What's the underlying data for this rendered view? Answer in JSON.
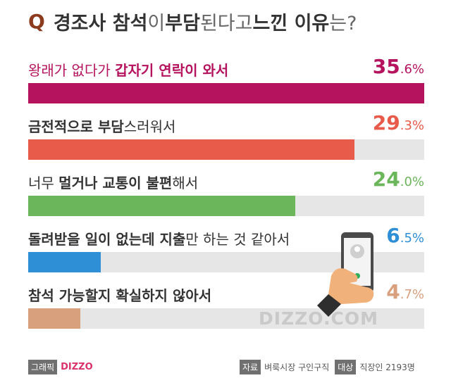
{
  "header": {
    "q_mark": "Q",
    "title_bold_1": "경조사 참석",
    "title_light_1": "이 ",
    "title_bold_2": "부담",
    "title_light_2": "된다고 ",
    "title_bold_3": "느낀 이유",
    "title_light_3": "는?"
  },
  "chart_data": {
    "type": "bar",
    "orientation": "horizontal",
    "title": "경조사 참석이 부담된다고 느낀 이유는?",
    "unit": "%",
    "xlim": [
      0,
      35.6
    ],
    "categories": [
      "왕래가 없다가 갑자기 연락이 와서",
      "금전적으로 부담스러워서",
      "너무 멀거나 교통이 불편해서",
      "돌려받을 일이 없는데 지출만 하는 것 같아서",
      "참석 가능할지 확실하지 않아서"
    ],
    "values": [
      35.6,
      29.3,
      24.0,
      6.5,
      4.7
    ],
    "value_labels": [
      {
        "int": "35",
        "dec": ".6%"
      },
      {
        "int": "29",
        "dec": ".3%"
      },
      {
        "int": "24",
        "dec": ".0%"
      },
      {
        "int": "6",
        "dec": ".5%"
      },
      {
        "int": "4",
        "dec": ".7%"
      }
    ],
    "label_parts": [
      [
        {
          "t": "왕래가 없다가 ",
          "b": false,
          "c": "#b5135e"
        },
        {
          "t": "갑자기 연락이 와서",
          "b": true,
          "c": "#b5135e"
        }
      ],
      [
        {
          "t": "금전적으로 부담",
          "b": true,
          "c": "#333333"
        },
        {
          "t": "스러워서",
          "b": false,
          "c": "#333333"
        }
      ],
      [
        {
          "t": "너무 ",
          "b": false,
          "c": "#333333"
        },
        {
          "t": "멀거나 교통이 불편",
          "b": true,
          "c": "#333333"
        },
        {
          "t": "해서",
          "b": false,
          "c": "#333333"
        }
      ],
      [
        {
          "t": "돌려받을 일이 없는데 지출",
          "b": true,
          "c": "#333333"
        },
        {
          "t": "만 하는 것 같아서",
          "b": false,
          "c": "#333333"
        }
      ],
      [
        {
          "t": "참석 가능할지 확실하지 않아서",
          "b": true,
          "c": "#333333"
        }
      ]
    ],
    "bar_colors": [
      "#b5135e",
      "#e85a4a",
      "#6bb65a",
      "#2f8fd6",
      "#d9a07e"
    ],
    "value_colors": [
      "#b5135e",
      "#e85a4a",
      "#6bb65a",
      "#2f8fd6",
      "#d9a07e"
    ],
    "track_color": "#e6e6e6"
  },
  "watermark": "DIZZO.COM",
  "footer": {
    "graphic_tag": "그래픽",
    "brand": "DIZZO",
    "source_tag": "자료",
    "source_text": "벼룩시장 구인구직",
    "target_tag": "대상",
    "target_text": "직장인 2193명"
  },
  "colors": {
    "q_mark": "#8c3b1e",
    "brand": "#d9316b",
    "accent": "#b5135e"
  }
}
